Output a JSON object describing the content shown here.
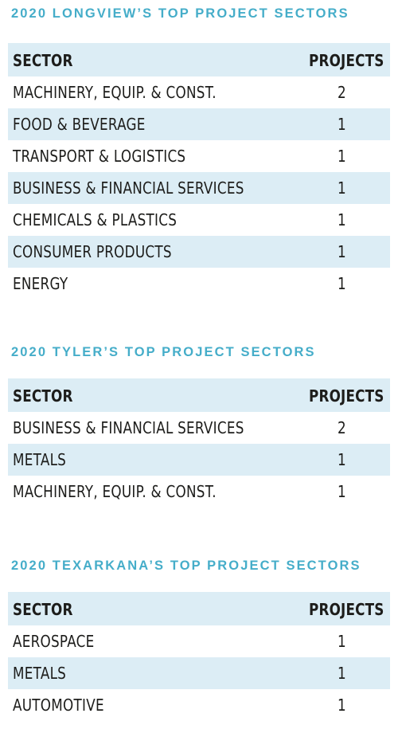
{
  "tables": [
    {
      "title": "2020 LONGVIEW’S TOP PROJECT SECTORS",
      "header": {
        "sector": "SECTOR",
        "projects": "PROJECTS"
      },
      "rows": [
        {
          "sector": "MACHINERY, EQUIP. & CONST.",
          "projects": "2"
        },
        {
          "sector": "FOOD & BEVERAGE",
          "projects": "1"
        },
        {
          "sector": "TRANSPORT & LOGISTICS",
          "projects": "1"
        },
        {
          "sector": "BUSINESS & FINANCIAL SERVICES",
          "projects": "1"
        },
        {
          "sector": "CHEMICALS & PLASTICS",
          "projects": "1"
        },
        {
          "sector": "CONSUMER PRODUCTS",
          "projects": "1"
        },
        {
          "sector": "ENERGY",
          "projects": "1"
        }
      ]
    },
    {
      "title": "2020 TYLER’S TOP PROJECT SECTORS",
      "header": {
        "sector": "SECTOR",
        "projects": "PROJECTS"
      },
      "rows": [
        {
          "sector": "BUSINESS & FINANCIAL SERVICES",
          "projects": "2"
        },
        {
          "sector": "METALS",
          "projects": "1"
        },
        {
          "sector": "MACHINERY, EQUIP. & CONST.",
          "projects": "1"
        }
      ]
    },
    {
      "title": "2020 TEXARKANA’S TOP PROJECT SECTORS",
      "header": {
        "sector": "SECTOR",
        "projects": "PROJECTS"
      },
      "rows": [
        {
          "sector": "AEROSPACE",
          "projects": "1"
        },
        {
          "sector": "METALS",
          "projects": "1"
        },
        {
          "sector": "AUTOMOTIVE",
          "projects": "1"
        }
      ]
    }
  ],
  "colors": {
    "title": "#45adc9",
    "shade": "#dcedf5",
    "text": "#1d1d1b"
  }
}
